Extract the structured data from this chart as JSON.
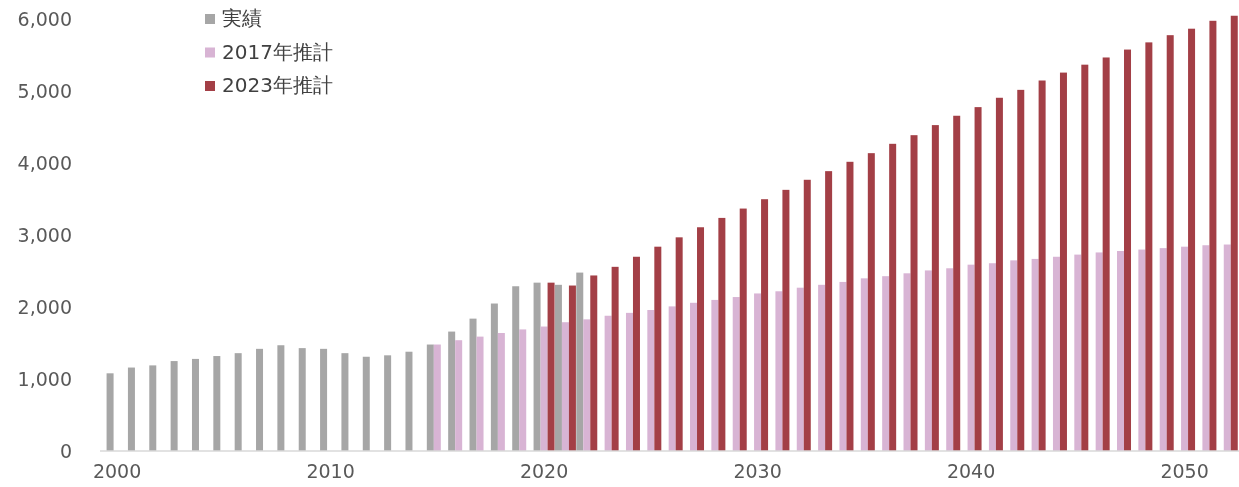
{
  "chart_data": {
    "type": "bar",
    "x": [
      2000,
      2001,
      2002,
      2003,
      2004,
      2005,
      2006,
      2007,
      2008,
      2009,
      2010,
      2011,
      2012,
      2013,
      2014,
      2015,
      2016,
      2017,
      2018,
      2019,
      2020,
      2021,
      2022,
      2023,
      2024,
      2025,
      2026,
      2027,
      2028,
      2029,
      2030,
      2031,
      2032,
      2033,
      2034,
      2035,
      2036,
      2037,
      2038,
      2039,
      2040,
      2041,
      2042,
      2043,
      2044,
      2045,
      2046,
      2047,
      2048,
      2049,
      2050,
      2051,
      2052
    ],
    "series": [
      {
        "name": "実績",
        "color": "#a6a6a6",
        "values": [
          1080,
          1160,
          1190,
          1250,
          1280,
          1320,
          1360,
          1420,
          1470,
          1430,
          1420,
          1360,
          1310,
          1330,
          1380,
          1480,
          1660,
          1840,
          2050,
          2290,
          2340,
          2310,
          2480,
          null,
          null,
          null,
          null,
          null,
          null,
          null,
          null,
          null,
          null,
          null,
          null,
          null,
          null,
          null,
          null,
          null,
          null,
          null,
          null,
          null,
          null,
          null,
          null,
          null,
          null,
          null,
          null,
          null,
          null
        ]
      },
      {
        "name": "2017年推計",
        "color": "#d8b4d4",
        "values": [
          null,
          null,
          null,
          null,
          null,
          null,
          null,
          null,
          null,
          null,
          null,
          null,
          null,
          null,
          null,
          1480,
          1540,
          1590,
          1640,
          1690,
          1730,
          1790,
          1830,
          1880,
          1920,
          1960,
          2010,
          2060,
          2100,
          2140,
          2190,
          2220,
          2270,
          2310,
          2350,
          2400,
          2430,
          2470,
          2510,
          2540,
          2590,
          2610,
          2650,
          2670,
          2700,
          2730,
          2760,
          2780,
          2800,
          2820,
          2840,
          2860,
          2870
        ]
      },
      {
        "name": "2023年推計",
        "color": "#a33f46",
        "values": [
          null,
          null,
          null,
          null,
          null,
          null,
          null,
          null,
          null,
          null,
          null,
          null,
          null,
          null,
          null,
          null,
          null,
          null,
          null,
          null,
          2340,
          2300,
          2440,
          2560,
          2700,
          2840,
          2970,
          3110,
          3240,
          3370,
          3500,
          3630,
          3770,
          3890,
          4020,
          4140,
          4270,
          4390,
          4530,
          4660,
          4780,
          4910,
          5020,
          5150,
          5260,
          5370,
          5470,
          5580,
          5680,
          5780,
          5870,
          5980,
          6050
        ]
      }
    ],
    "xlim": [
      1999.2,
      2052.55
    ],
    "xticks": [
      2000,
      2010,
      2020,
      2030,
      2040,
      2050
    ],
    "ylim": [
      0,
      6130
    ],
    "yticks": [
      0,
      {
        "value": 1000,
        "label": "1,000"
      },
      {
        "value": 2000,
        "label": "2,000"
      },
      {
        "value": 3000,
        "label": "3,000"
      },
      {
        "value": 4000,
        "label": "4,000"
      },
      {
        "value": 5000,
        "label": "5,000"
      },
      {
        "value": 6000,
        "label": "6,000"
      }
    ],
    "legend": "top left",
    "grid": false
  }
}
